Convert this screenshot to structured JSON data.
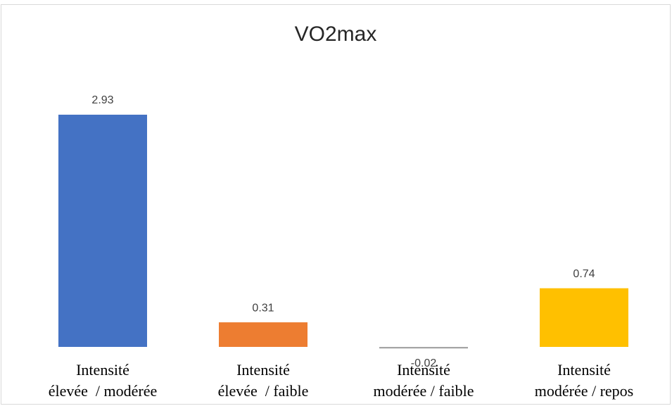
{
  "chart_data": {
    "type": "bar",
    "title": "VO2max",
    "categories": [
      [
        "Intensité",
        "élevée  / modérée"
      ],
      [
        "Intensité",
        "élevée  / faible"
      ],
      [
        "Intensité",
        "modérée / faible"
      ],
      [
        "Intensité",
        "modérée / repos"
      ]
    ],
    "values": [
      2.93,
      0.31,
      -0.02,
      0.74
    ],
    "colors": [
      "#4472c4",
      "#ed7d31",
      "#a5a5a5",
      "#ffc000"
    ]
  }
}
